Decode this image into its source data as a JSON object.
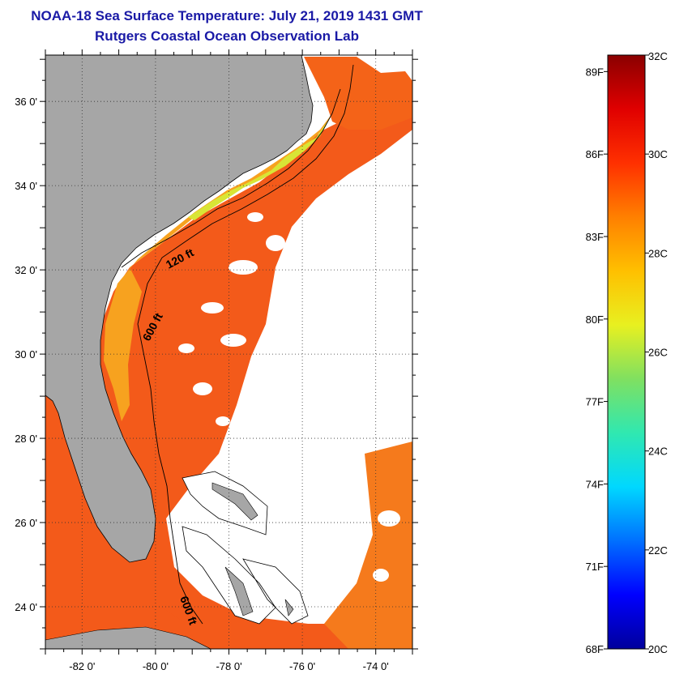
{
  "header": {
    "title": "NOAA-18 Sea Surface Temperature:  July 21, 2019 1431 GMT",
    "subtitle": "Rutgers Coastal Ocean Observation Lab"
  },
  "map": {
    "lat_ticks": [
      {
        "value": 36,
        "label": "36 0'"
      },
      {
        "value": 34,
        "label": "34 0'"
      },
      {
        "value": 32,
        "label": "32 0'"
      },
      {
        "value": 30,
        "label": "30 0'"
      },
      {
        "value": 28,
        "label": "28 0'"
      },
      {
        "value": 26,
        "label": "26 0'"
      },
      {
        "value": 24,
        "label": "24 0'"
      }
    ],
    "lon_ticks": [
      {
        "value": -82,
        "label": "-82 0'"
      },
      {
        "value": -80,
        "label": "-80 0'"
      },
      {
        "value": -78,
        "label": "-78 0'"
      },
      {
        "value": -76,
        "label": "-76 0'"
      },
      {
        "value": -74,
        "label": "-74 0'"
      }
    ],
    "lat_range": [
      23,
      37.1
    ],
    "lon_range": [
      -83,
      -73
    ],
    "contour_labels": [
      "120 ft",
      "600 ft",
      "600 ft"
    ],
    "colors": {
      "land": "#a6a6a6",
      "no_data": "#ffffff",
      "sea_warm": "#f35a1a",
      "sea_shelf": "#f6a31e",
      "sea_cool": "#d6e633"
    }
  },
  "colorbar": {
    "celsius_range": [
      20,
      32
    ],
    "fahrenheit_labels": [
      "89F",
      "86F",
      "83F",
      "80F",
      "77F",
      "74F",
      "71F",
      "68F"
    ],
    "celsius_labels": [
      "32C",
      "30C",
      "28C",
      "26C",
      "24C",
      "22C",
      "20C"
    ],
    "gradient": [
      "#00009c",
      "#0000ff",
      "#0070ff",
      "#00d8ff",
      "#30e8b0",
      "#80e060",
      "#e8f020",
      "#ffc000",
      "#ff8000",
      "#ff3000",
      "#e00000",
      "#8a0000"
    ]
  }
}
